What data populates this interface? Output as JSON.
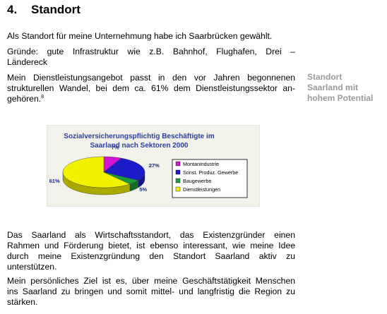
{
  "section": {
    "number": "4.",
    "title": "Standort"
  },
  "paragraphs": {
    "p1": "Als Standort für meine Unternehmung habe ich Saarbrücken gewählt.",
    "p2_line1": "Gründe: gute Infrastruktur wie z.B. Bahnhof, Flughafen, Drei –",
    "p2_line2": "Ländereck",
    "p3_line1": "Mein Dienstleistungsangebot passt in den vor Jahren begonnenen",
    "p3_line2": "strukturellen Wandel, bei dem ca. 61% dem Dienstleistungssektor an-",
    "p3_line3": "gehören.",
    "p3_footnote": "8",
    "p4_line1": "Das Saarland als Wirtschaftsstandort, das Existenzgründer einen",
    "p4_line2": "Rahmen und Förderung bietet, ist ebenso interessant, wie meine Idee",
    "p4_line3": "durch meine Existenzgründung den Standort Saarland aktiv zu",
    "p4_line4": "unterstützen.",
    "p5_line1": "Mein persönliches Ziel ist es, über meine Geschäftstätigkeit Menschen",
    "p5_line2": "ins Saarland zu bringen und somit mittel- und langfristig die Region zu",
    "p5_line3": "stärken."
  },
  "margin_note": {
    "line1": "Standort",
    "line2": "Saarland mit",
    "line3": "hohem Potential"
  },
  "chart_data": {
    "type": "pie",
    "title_line1": "Sozialversicherungspflichtig Beschäftigte im",
    "title_line2": "Saarland nach Sektoren 2000",
    "categories": [
      "Montanindustrie",
      "Sonst. Produz. Gewerbe",
      "Baugewerbe",
      "Dienstleistungen"
    ],
    "values": [
      7,
      27,
      5,
      61
    ],
    "value_labels": [
      "7%",
      "27%",
      "5%",
      "61%"
    ],
    "colors": [
      "#d414d4",
      "#1c1cc8",
      "#1c9c3c",
      "#f2f200"
    ],
    "legend_position": "right",
    "three_d": true
  }
}
